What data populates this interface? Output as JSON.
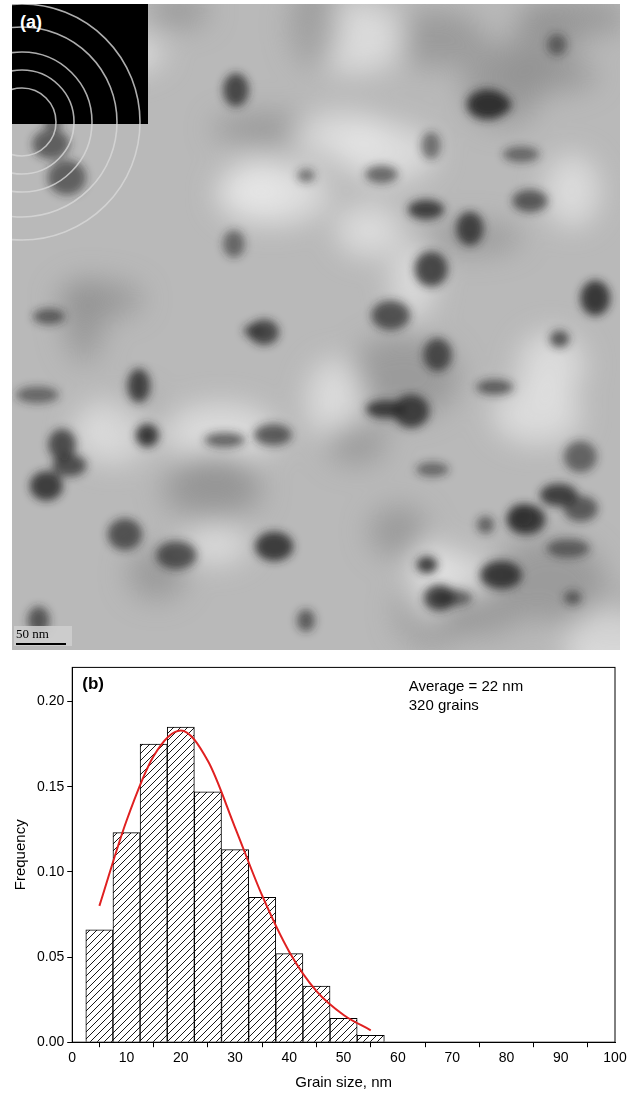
{
  "micrograph": {
    "label": "(a)",
    "scale_bar": "50 nm"
  },
  "chart_data": {
    "type": "histogram",
    "panel_label": "(b)",
    "annotations": [
      "Average = 22 nm",
      "320 grains"
    ],
    "x_label": "Grain size, nm",
    "y_label": "Frequency",
    "bins": [
      2.5,
      7.5,
      12.5,
      17.5,
      22.5,
      27.5,
      32.5,
      37.5,
      42.5,
      47.5,
      52.5,
      57.5
    ],
    "values": [
      0.066,
      0.123,
      0.175,
      0.185,
      0.147,
      0.113,
      0.085,
      0.052,
      0.033,
      0.014,
      0.004
    ],
    "color": "#000000",
    "series": [
      {
        "type": "line",
        "color": "#e02020",
        "x": [
          5,
          10,
          15,
          20,
          25,
          30,
          35,
          40,
          45,
          50,
          55
        ],
        "values": [
          0.08,
          0.13,
          0.168,
          0.183,
          0.165,
          0.126,
          0.086,
          0.053,
          0.03,
          0.016,
          0.007
        ]
      }
    ],
    "xlim": [
      0,
      100
    ],
    "xticks": [
      0,
      10,
      20,
      30,
      40,
      50,
      60,
      70,
      80,
      90,
      100
    ],
    "ylim": [
      0,
      0.22
    ],
    "yticks": [
      {
        "value": 0,
        "label": "0.00"
      },
      {
        "value": 0.05,
        "label": "0.05"
      },
      {
        "value": 0.1,
        "label": "0.10"
      },
      {
        "value": 0.15,
        "label": "0.15"
      },
      {
        "value": 0.2,
        "label": "0.20"
      }
    ],
    "grid": false
  }
}
